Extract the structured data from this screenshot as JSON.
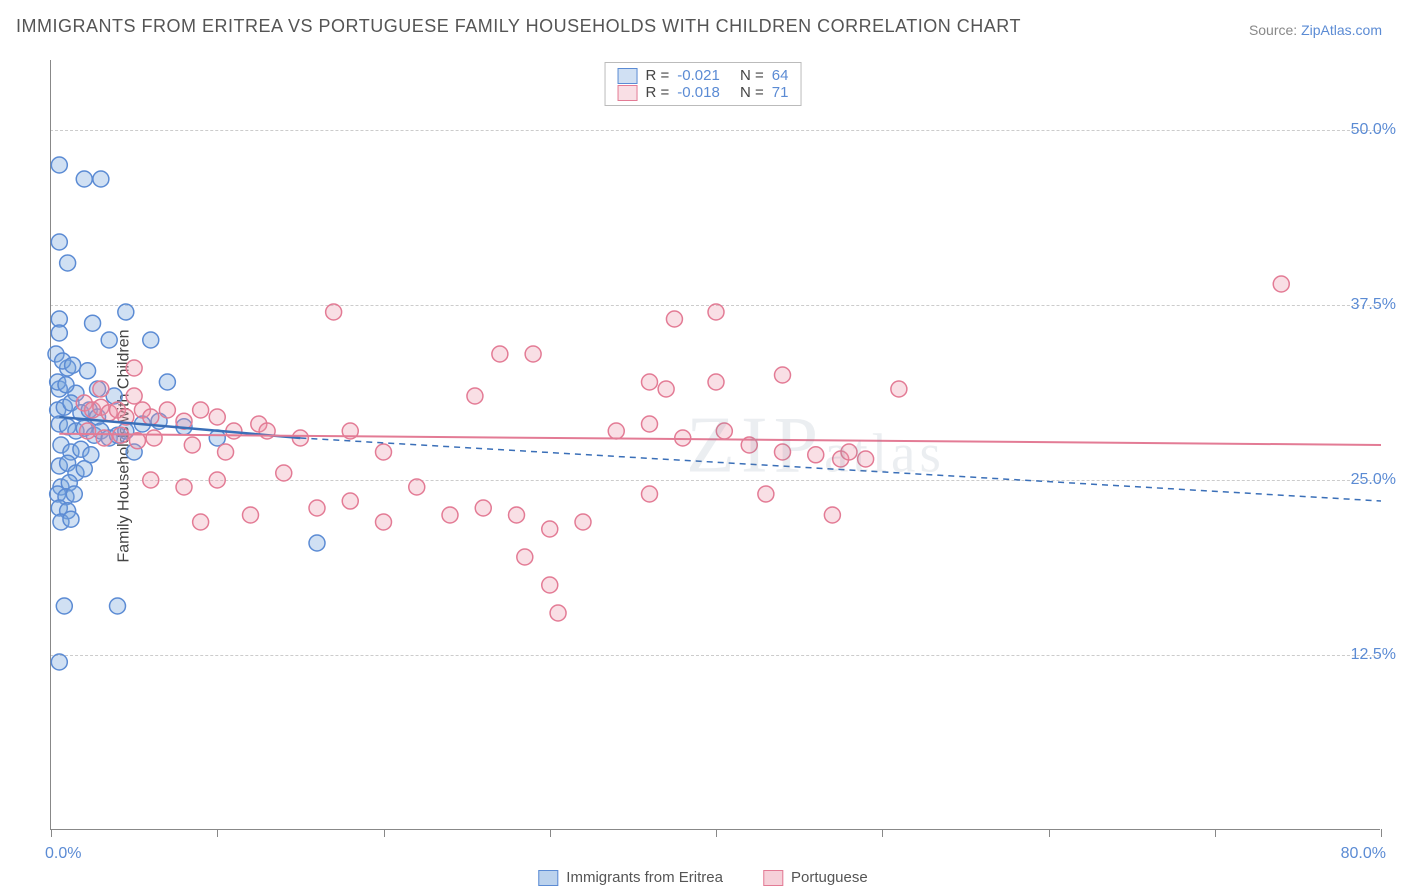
{
  "title": "IMMIGRANTS FROM ERITREA VS PORTUGUESE FAMILY HOUSEHOLDS WITH CHILDREN CORRELATION CHART",
  "source_prefix": "Source: ",
  "source_name": "ZipAtlas.com",
  "ylabel": "Family Households with Children",
  "watermark_zip": "ZIP",
  "watermark_atlas": "atlas",
  "chart": {
    "type": "scatter",
    "background_color": "#ffffff",
    "grid_color": "#cccccc",
    "axis_color": "#888888",
    "label_color": "#5b8bd4",
    "xlim": [
      0,
      80
    ],
    "ylim": [
      0,
      55
    ],
    "ytick_values": [
      12.5,
      25.0,
      37.5,
      50.0
    ],
    "ytick_labels": [
      "12.5%",
      "25.0%",
      "37.5%",
      "50.0%"
    ],
    "xtick_values": [
      0,
      10,
      20,
      30,
      40,
      50,
      60,
      70,
      80
    ],
    "x_start_label": "0.0%",
    "x_end_label": "80.0%",
    "marker_radius": 8,
    "marker_stroke_width": 1.5,
    "series": [
      {
        "name": "Immigrants from Eritrea",
        "fill_color": "rgba(120,165,220,0.35)",
        "stroke_color": "#5b8bd4",
        "R_label": "R =",
        "R_value": "-0.021",
        "N_label": "N =",
        "N_value": "64",
        "trend": {
          "x1": 0.5,
          "y1": 29.5,
          "x2": 15,
          "y2": 28.0,
          "color": "#3a6fb8",
          "width": 2.5,
          "solid_to_x": 15,
          "dash_to_x": 80,
          "dash_y": 23.5
        },
        "points": [
          [
            0.5,
            47.5
          ],
          [
            2.0,
            46.5
          ],
          [
            3.0,
            46.5
          ],
          [
            0.5,
            42.0
          ],
          [
            1.0,
            40.5
          ],
          [
            0.5,
            36.5
          ],
          [
            2.5,
            36.2
          ],
          [
            4.5,
            37.0
          ],
          [
            0.5,
            35.5
          ],
          [
            3.5,
            35.0
          ],
          [
            6.0,
            35.0
          ],
          [
            1.0,
            33.0
          ],
          [
            2.2,
            32.8
          ],
          [
            0.5,
            31.5
          ],
          [
            1.5,
            31.2
          ],
          [
            2.8,
            31.5
          ],
          [
            3.8,
            31.0
          ],
          [
            0.4,
            30.0
          ],
          [
            0.8,
            30.2
          ],
          [
            1.2,
            30.5
          ],
          [
            1.8,
            29.8
          ],
          [
            2.3,
            30.0
          ],
          [
            2.8,
            29.5
          ],
          [
            0.5,
            29.0
          ],
          [
            1.0,
            28.8
          ],
          [
            1.5,
            28.5
          ],
          [
            2.0,
            28.7
          ],
          [
            2.6,
            28.2
          ],
          [
            3.0,
            28.5
          ],
          [
            3.5,
            28.0
          ],
          [
            4.0,
            28.2
          ],
          [
            0.6,
            27.5
          ],
          [
            1.2,
            27.0
          ],
          [
            1.8,
            27.2
          ],
          [
            2.4,
            26.8
          ],
          [
            0.5,
            26.0
          ],
          [
            1.0,
            26.2
          ],
          [
            1.5,
            25.5
          ],
          [
            2.0,
            25.8
          ],
          [
            0.6,
            24.5
          ],
          [
            1.1,
            24.8
          ],
          [
            0.4,
            24.0
          ],
          [
            0.9,
            23.8
          ],
          [
            1.4,
            24.0
          ],
          [
            0.5,
            23.0
          ],
          [
            1.0,
            22.8
          ],
          [
            0.6,
            22.0
          ],
          [
            1.2,
            22.2
          ],
          [
            4.5,
            28.5
          ],
          [
            5.5,
            29.0
          ],
          [
            6.5,
            29.2
          ],
          [
            8.0,
            28.8
          ],
          [
            10.0,
            28.0
          ],
          [
            16.0,
            20.5
          ],
          [
            0.8,
            16.0
          ],
          [
            4.0,
            16.0
          ],
          [
            0.5,
            12.0
          ],
          [
            0.3,
            34.0
          ],
          [
            0.7,
            33.5
          ],
          [
            1.3,
            33.2
          ],
          [
            0.4,
            32.0
          ],
          [
            0.9,
            31.8
          ],
          [
            5.0,
            27.0
          ],
          [
            7.0,
            32.0
          ]
        ]
      },
      {
        "name": "Portuguese",
        "fill_color": "rgba(235,150,170,0.30)",
        "stroke_color": "#e37b95",
        "R_label": "R =",
        "R_value": "-0.018",
        "N_label": "N =",
        "N_value": "71",
        "trend": {
          "x1": 0.5,
          "y1": 28.3,
          "x2": 80,
          "y2": 27.5,
          "color": "#e37b95",
          "width": 2,
          "solid_to_x": 80
        },
        "points": [
          [
            74.0,
            39.0
          ],
          [
            40.0,
            37.0
          ],
          [
            37.5,
            36.5
          ],
          [
            17.0,
            37.0
          ],
          [
            27.0,
            34.0
          ],
          [
            29.0,
            34.0
          ],
          [
            5.0,
            33.0
          ],
          [
            36.0,
            32.0
          ],
          [
            37.0,
            31.5
          ],
          [
            40.0,
            32.0
          ],
          [
            44.0,
            32.5
          ],
          [
            25.5,
            31.0
          ],
          [
            47.5,
            26.5
          ],
          [
            51.0,
            31.5
          ],
          [
            2.0,
            30.5
          ],
          [
            2.5,
            30.0
          ],
          [
            3.0,
            30.2
          ],
          [
            3.5,
            29.8
          ],
          [
            4.0,
            30.0
          ],
          [
            4.5,
            29.5
          ],
          [
            5.5,
            30.0
          ],
          [
            6.0,
            29.5
          ],
          [
            7.0,
            30.0
          ],
          [
            8.0,
            29.2
          ],
          [
            9.0,
            30.0
          ],
          [
            10.0,
            29.5
          ],
          [
            11.0,
            28.5
          ],
          [
            12.5,
            29.0
          ],
          [
            2.2,
            28.5
          ],
          [
            3.2,
            28.0
          ],
          [
            4.2,
            28.2
          ],
          [
            5.2,
            27.8
          ],
          [
            6.2,
            28.0
          ],
          [
            8.5,
            27.5
          ],
          [
            10.5,
            27.0
          ],
          [
            13.0,
            28.5
          ],
          [
            15.0,
            28.0
          ],
          [
            18.0,
            28.5
          ],
          [
            20.0,
            27.0
          ],
          [
            34.0,
            28.5
          ],
          [
            36.0,
            29.0
          ],
          [
            38.0,
            28.0
          ],
          [
            40.5,
            28.5
          ],
          [
            42.0,
            27.5
          ],
          [
            44.0,
            27.0
          ],
          [
            46.0,
            26.8
          ],
          [
            48.0,
            27.0
          ],
          [
            6.0,
            25.0
          ],
          [
            8.0,
            24.5
          ],
          [
            10.0,
            25.0
          ],
          [
            14.0,
            25.5
          ],
          [
            16.0,
            23.0
          ],
          [
            18.0,
            23.5
          ],
          [
            22.0,
            24.5
          ],
          [
            24.0,
            22.5
          ],
          [
            26.0,
            23.0
          ],
          [
            28.0,
            22.5
          ],
          [
            30.0,
            21.5
          ],
          [
            32.0,
            22.0
          ],
          [
            36.0,
            24.0
          ],
          [
            43.0,
            24.0
          ],
          [
            9.0,
            22.0
          ],
          [
            12.0,
            22.5
          ],
          [
            20.0,
            22.0
          ],
          [
            28.5,
            19.5
          ],
          [
            30.0,
            17.5
          ],
          [
            30.5,
            15.5
          ],
          [
            47.0,
            22.5
          ],
          [
            49.0,
            26.5
          ],
          [
            3.0,
            31.5
          ],
          [
            5.0,
            31.0
          ]
        ]
      }
    ]
  },
  "bottom_legend": [
    {
      "label": "Immigrants from Eritrea",
      "fill": "rgba(120,165,220,0.5)",
      "stroke": "#5b8bd4"
    },
    {
      "label": "Portuguese",
      "fill": "rgba(235,150,170,0.45)",
      "stroke": "#e37b95"
    }
  ]
}
